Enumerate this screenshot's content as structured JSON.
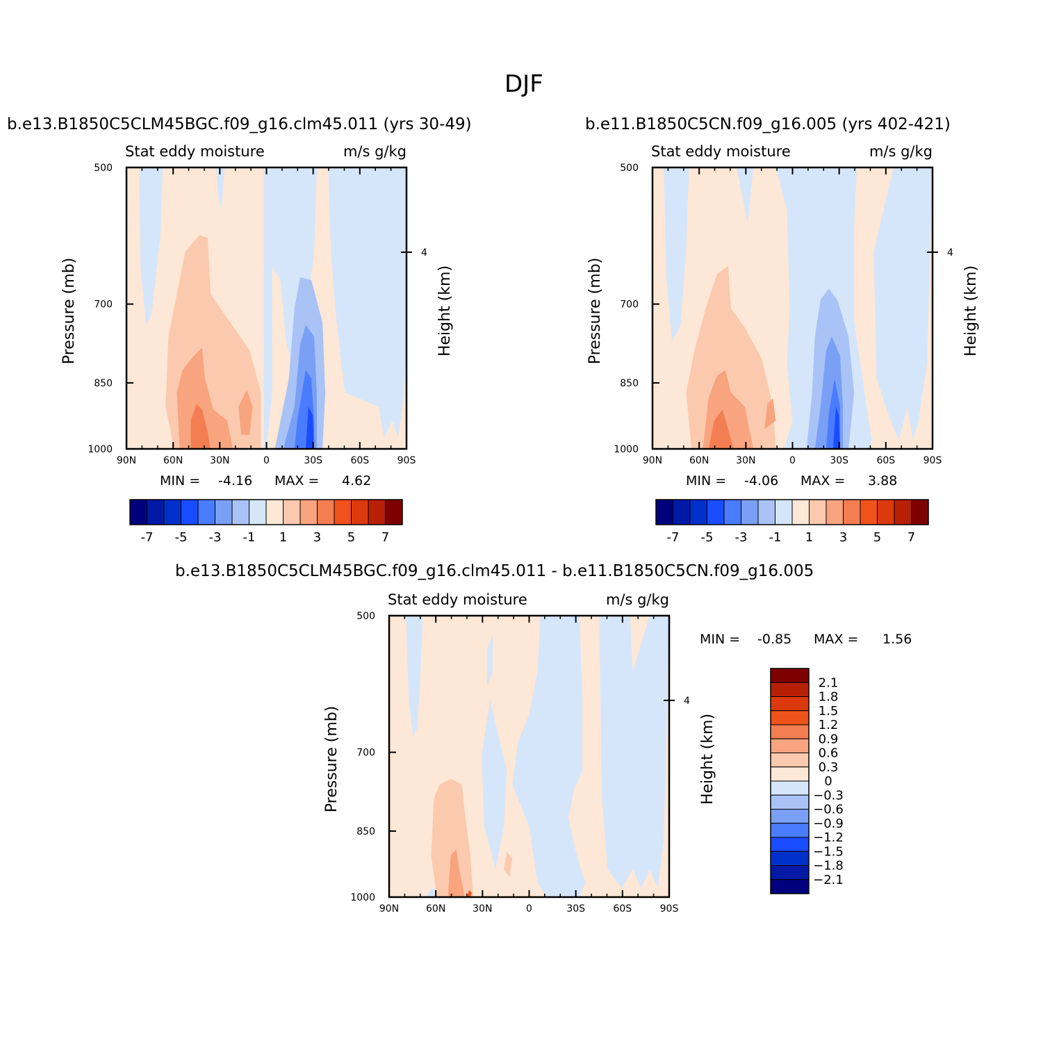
{
  "figure": {
    "title": "DJF",
    "season": "DJF"
  },
  "colors": {
    "levels_main": [
      "#00007f",
      "#001aa6",
      "#0030cc",
      "#1a4cff",
      "#4a7cff",
      "#7aa0f5",
      "#a9c3f7",
      "#d5e6fb",
      "#fde7d6",
      "#fbc9ad",
      "#f7a47f",
      "#f37e52",
      "#f0521c",
      "#dc3a0e",
      "#b82006",
      "#7f0000"
    ],
    "levels_diff": [
      "#00007f",
      "#001aa6",
      "#0030cc",
      "#1a4cff",
      "#4a7cff",
      "#7aa0f5",
      "#a9c3f7",
      "#d5e6fb",
      "#fde7d6",
      "#fbc9ad",
      "#f7a47f",
      "#f37e52",
      "#f0521c",
      "#dc3a0e",
      "#b82006",
      "#7f0000"
    ]
  },
  "panels": [
    {
      "id": "model",
      "case_title": "b.e13.B1850C5CLM45BGC.f09_g16.clm45.011 (yrs 30-49)",
      "variable": "Stat eddy moisture",
      "units": "m/s g/kg",
      "min_label": "MIN = ",
      "min_value": "-4.16",
      "max_label": "MAX = ",
      "max_value": "4.62"
    },
    {
      "id": "control",
      "case_title": "b.e11.B1850C5CN.f09_g16.005 (yrs 402-421)",
      "variable": "Stat eddy moisture",
      "units": "m/s g/kg",
      "min_label": "MIN = ",
      "min_value": "-4.06",
      "max_label": "MAX = ",
      "max_value": "3.88"
    },
    {
      "id": "difference",
      "case_title": "b.e13.B1850C5CLM45BGC.f09_g16.clm45.011 - b.e11.B1850C5CN.f09_g16.005",
      "variable": "Stat eddy moisture",
      "units": "m/s g/kg",
      "min_label": "MIN = ",
      "min_value": "-0.85",
      "max_label": "MAX = ",
      "max_value": "1.56"
    }
  ],
  "chart_data": [
    {
      "type": "heatmap",
      "title": "b.e13.B1850C5CLM45BGC.f09_g16.clm45.011 (yrs 30-49)",
      "xlabel": "",
      "ylabel": "Pressure (mb)",
      "y2label": "Height (km)",
      "xlim": [
        90,
        -90
      ],
      "ylim": [
        1000,
        500
      ],
      "x_ticks": [
        "90N",
        "60N",
        "30N",
        "0",
        "30S",
        "60S",
        "90S"
      ],
      "y_ticks": [
        "500",
        "700",
        "850",
        "1000"
      ],
      "y2_ticks": [
        "4"
      ],
      "colorbar_ticks": [
        "-7",
        "-5",
        "-3",
        "-1",
        "1",
        "3",
        "5",
        "7"
      ],
      "min": -4.16,
      "max": 4.62
    },
    {
      "type": "heatmap",
      "title": "b.e11.B1850C5CN.f09_g16.005 (yrs 402-421)",
      "xlabel": "",
      "ylabel": "Pressure (mb)",
      "y2label": "Height (km)",
      "xlim": [
        90,
        -90
      ],
      "ylim": [
        1000,
        500
      ],
      "x_ticks": [
        "90N",
        "60N",
        "30N",
        "0",
        "30S",
        "60S",
        "90S"
      ],
      "y_ticks": [
        "500",
        "700",
        "850",
        "1000"
      ],
      "y2_ticks": [
        "4"
      ],
      "colorbar_ticks": [
        "-7",
        "-5",
        "-3",
        "-1",
        "1",
        "3",
        "5",
        "7"
      ],
      "min": -4.06,
      "max": 3.88
    },
    {
      "type": "heatmap",
      "title": "b.e13.B1850C5CLM45BGC.f09_g16.clm45.011 - b.e11.B1850C5CN.f09_g16.005",
      "xlabel": "",
      "ylabel": "Pressure (mb)",
      "y2label": "Height (km)",
      "xlim": [
        90,
        -90
      ],
      "ylim": [
        1000,
        500
      ],
      "x_ticks": [
        "90N",
        "60N",
        "30N",
        "0",
        "30S",
        "60S",
        "90S"
      ],
      "y_ticks": [
        "500",
        "700",
        "850",
        "1000"
      ],
      "y2_ticks": [
        "4"
      ],
      "colorbar_ticks": [
        "2.1",
        "1.8",
        "1.5",
        "1.2",
        "0.9",
        "0.6",
        "0.3",
        "0",
        "-0.3",
        "-0.6",
        "-0.9",
        "-1.2",
        "-1.5",
        "-1.8",
        "-2.1"
      ],
      "min": -0.85,
      "max": 1.56
    }
  ]
}
